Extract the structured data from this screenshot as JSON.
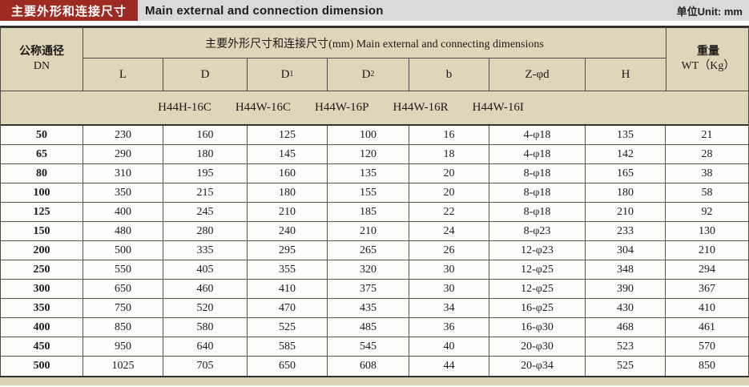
{
  "titlebar": {
    "red_label": "主要外形和连接尺寸",
    "title": "Main external and connection dimension",
    "unit": "单位Unit: mm"
  },
  "colors": {
    "accent_red": "#9e2b22",
    "titlebar_gray": "#d9d9d9",
    "header_beige": "#ddd6b8",
    "border_dark": "#33322e"
  },
  "table": {
    "dn_header": {
      "line1": "公称通径",
      "line2": "DN"
    },
    "span_header": "主要外形尺寸和连接尺寸(mm) Main external and connecting dimensions",
    "weight_header": {
      "line1": "重量",
      "line2": "WT（Kg）"
    },
    "columns": [
      {
        "base": "L",
        "sub": ""
      },
      {
        "base": "D",
        "sub": ""
      },
      {
        "base": "D",
        "sub": "1"
      },
      {
        "base": "D",
        "sub": "2"
      },
      {
        "base": "b",
        "sub": ""
      },
      {
        "base": "Z-φd",
        "sub": ""
      },
      {
        "base": "H",
        "sub": ""
      }
    ],
    "models": [
      "H44H-16C",
      "H44W-16C",
      "H44W-16P",
      "H44W-16R",
      "H44W-16I"
    ],
    "rows": [
      [
        "50",
        "230",
        "160",
        "125",
        "100",
        "16",
        "4-φ18",
        "135",
        "21"
      ],
      [
        "65",
        "290",
        "180",
        "145",
        "120",
        "18",
        "4-φ18",
        "142",
        "28"
      ],
      [
        "80",
        "310",
        "195",
        "160",
        "135",
        "20",
        "8-φ18",
        "165",
        "38"
      ],
      [
        "100",
        "350",
        "215",
        "180",
        "155",
        "20",
        "8-φ18",
        "180",
        "58"
      ],
      [
        "125",
        "400",
        "245",
        "210",
        "185",
        "22",
        "8-φ18",
        "210",
        "92"
      ],
      [
        "150",
        "480",
        "280",
        "240",
        "210",
        "24",
        "8-φ23",
        "233",
        "130"
      ],
      [
        "200",
        "500",
        "335",
        "295",
        "265",
        "26",
        "12-φ23",
        "304",
        "210"
      ],
      [
        "250",
        "550",
        "405",
        "355",
        "320",
        "30",
        "12-φ25",
        "348",
        "294"
      ],
      [
        "300",
        "650",
        "460",
        "410",
        "375",
        "30",
        "12-φ25",
        "390",
        "367"
      ],
      [
        "350",
        "750",
        "520",
        "470",
        "435",
        "34",
        "16-φ25",
        "430",
        "410"
      ],
      [
        "400",
        "850",
        "580",
        "525",
        "485",
        "36",
        "16-φ30",
        "468",
        "461"
      ],
      [
        "450",
        "950",
        "640",
        "585",
        "545",
        "40",
        "20-φ30",
        "523",
        "570"
      ],
      [
        "500",
        "1025",
        "705",
        "650",
        "608",
        "44",
        "20-φ34",
        "525",
        "850"
      ]
    ]
  }
}
